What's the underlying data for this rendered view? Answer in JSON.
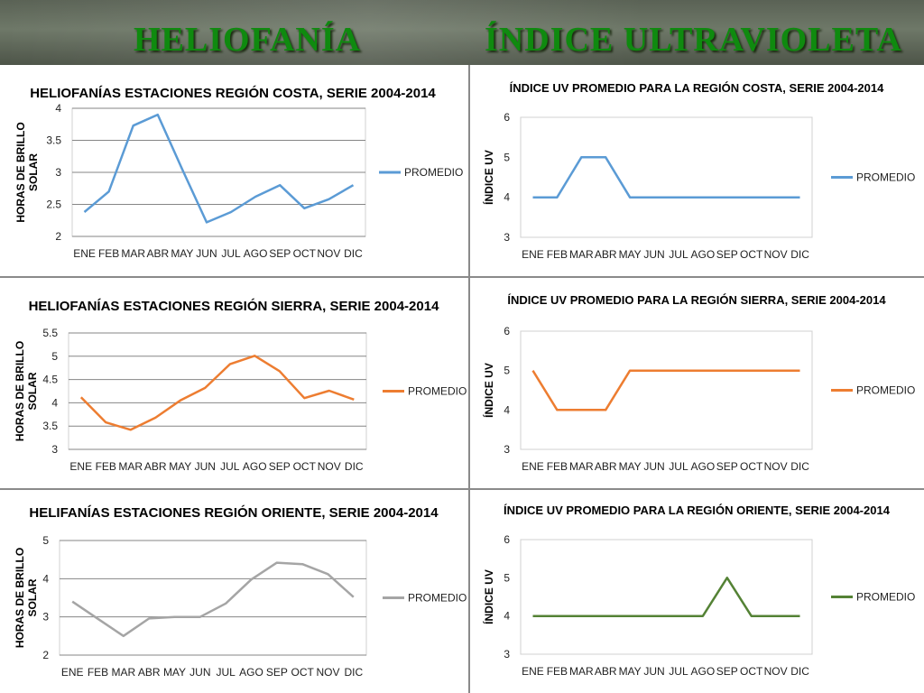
{
  "header": {
    "left_title": "HELIOFANÍA",
    "right_title": "ÍNDICE ULTRAVIOLETA"
  },
  "colors": {
    "blue": "#5b9bd5",
    "orange": "#ed7d31",
    "gray": "#a5a5a5",
    "green": "#548235",
    "header_text": "#0f8a0f"
  },
  "chart_data": [
    {
      "id": "helio-costa",
      "type": "line",
      "title": "HELIOFANÍAS ESTACIONES REGIÓN COSTA, SERIE 2004-2014",
      "ylabel": "HORAS DE BRILLO SOLAR",
      "xlabel": "",
      "categories": [
        "ENE",
        "FEB",
        "MAR",
        "ABR",
        "MAY",
        "JUN",
        "JUL",
        "AGO",
        "SEP",
        "OCT",
        "NOV",
        "DIC"
      ],
      "ylim": [
        2,
        4
      ],
      "yticks": [
        "2",
        "2.5",
        "3",
        "3.5",
        "4"
      ],
      "grid": true,
      "legend": "right",
      "color": "#5b9bd5",
      "series": [
        {
          "name": "PROMEDIO",
          "values": [
            2.38,
            2.7,
            3.73,
            3.9,
            3.05,
            2.22,
            2.38,
            2.62,
            2.8,
            2.44,
            2.58,
            2.8
          ]
        }
      ]
    },
    {
      "id": "uv-costa",
      "type": "line",
      "title": "ÍNDICE UV PROMEDIO PARA LA REGIÓN COSTA, SERIE 2004-2014",
      "ylabel": "ÍNDICE UV",
      "xlabel": "",
      "categories": [
        "ENE",
        "FEB",
        "MAR",
        "ABR",
        "MAY",
        "JUN",
        "JUL",
        "AGO",
        "SEP",
        "OCT",
        "NOV",
        "DIC"
      ],
      "ylim": [
        3,
        6
      ],
      "yticks": [
        "3",
        "4",
        "5",
        "6"
      ],
      "grid": false,
      "legend": "right",
      "color": "#5b9bd5",
      "series": [
        {
          "name": "PROMEDIO",
          "values": [
            4,
            4,
            5,
            5,
            4,
            4,
            4,
            4,
            4,
            4,
            4,
            4
          ]
        }
      ]
    },
    {
      "id": "helio-sierra",
      "type": "line",
      "title": "HELIOFANÍAS ESTACIONES REGIÓN SIERRA, SERIE 2004-2014",
      "ylabel": "HORAS DE BRILLO SOLAR",
      "xlabel": "",
      "categories": [
        "ENE",
        "FEB",
        "MAR",
        "ABR",
        "MAY",
        "JUN",
        "JUL",
        "AGO",
        "SEP",
        "OCT",
        "NOV",
        "DIC"
      ],
      "ylim": [
        3,
        5.5
      ],
      "yticks": [
        "3",
        "3.5",
        "4",
        "4.5",
        "5",
        "5.5"
      ],
      "grid": true,
      "legend": "right",
      "color": "#ed7d31",
      "series": [
        {
          "name": "PROMEDIO",
          "values": [
            4.12,
            3.58,
            3.42,
            3.68,
            4.05,
            4.32,
            4.83,
            5.01,
            4.68,
            4.1,
            4.26,
            4.07
          ]
        }
      ]
    },
    {
      "id": "uv-sierra",
      "type": "line",
      "title": "ÍNDICE UV PROMEDIO PARA LA REGIÓN SIERRA, SERIE 2004-2014",
      "ylabel": "ÍNDICE UV",
      "xlabel": "",
      "categories": [
        "ENE",
        "FEB",
        "MAR",
        "ABR",
        "MAY",
        "JUN",
        "JUL",
        "AGO",
        "SEP",
        "OCT",
        "NOV",
        "DIC"
      ],
      "ylim": [
        3,
        6
      ],
      "yticks": [
        "3",
        "4",
        "5",
        "6"
      ],
      "grid": false,
      "legend": "right",
      "color": "#ed7d31",
      "series": [
        {
          "name": "PROMEDIO",
          "values": [
            5,
            4,
            4,
            4,
            5,
            5,
            5,
            5,
            5,
            5,
            5,
            5
          ]
        }
      ]
    },
    {
      "id": "helio-oriente",
      "type": "line",
      "title": "HELIFANÍAS ESTACIONES REGIÓN ORIENTE, SERIE 2004-2014",
      "ylabel": "HORAS DE BRILLO SOLAR",
      "xlabel": "",
      "categories": [
        "ENE",
        "FEB",
        "MAR",
        "ABR",
        "MAY",
        "JUN",
        "JUL",
        "AGO",
        "SEP",
        "OCT",
        "NOV",
        "DIC"
      ],
      "ylim": [
        2,
        5
      ],
      "yticks": [
        "2",
        "3",
        "4",
        "5"
      ],
      "grid": true,
      "legend": "right",
      "color": "#a5a5a5",
      "series": [
        {
          "name": "PROMEDIO",
          "values": [
            3.4,
            2.95,
            2.5,
            2.96,
            3.0,
            3.0,
            3.35,
            3.98,
            4.42,
            4.38,
            4.12,
            3.52
          ]
        }
      ]
    },
    {
      "id": "uv-oriente",
      "type": "line",
      "title": "ÍNDICE UV PROMEDIO PARA LA REGIÓN ORIENTE, SERIE 2004-2014",
      "ylabel": "ÍNDICE UV",
      "xlabel": "",
      "categories": [
        "ENE",
        "FEB",
        "MAR",
        "ABR",
        "MAY",
        "JUN",
        "JUL",
        "AGO",
        "SEP",
        "OCT",
        "NOV",
        "DIC"
      ],
      "ylim": [
        3,
        6
      ],
      "yticks": [
        "3",
        "4",
        "5",
        "6"
      ],
      "grid": false,
      "legend": "right",
      "color": "#548235",
      "series": [
        {
          "name": "PROMEDIO",
          "values": [
            4,
            4,
            4,
            4,
            4,
            4,
            4,
            4,
            5,
            4,
            4,
            4
          ]
        }
      ]
    }
  ]
}
